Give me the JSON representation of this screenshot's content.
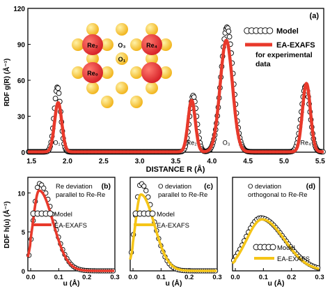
{
  "chart_data": [
    {
      "type": "line",
      "panel_label": "(a)",
      "ylabel": "RDF g(R) (Å⁻¹)",
      "xlabel": "DISTANCE R (Å)",
      "xlim": [
        1.45,
        5.55
      ],
      "ylim": [
        0,
        120
      ],
      "xticks": [
        1.5,
        2.0,
        2.5,
        3.0,
        3.5,
        4.0,
        4.5,
        5.0,
        5.5
      ],
      "xtick_labels": [
        "1.5",
        "2.0",
        "2.5",
        "3.0",
        "3.5",
        "4.0",
        "4.5",
        "5.0",
        "5.5"
      ],
      "yticks": [
        0,
        30,
        60,
        90,
        120
      ],
      "ytick_labels": [
        "0",
        "30",
        "60",
        "90",
        "120"
      ],
      "legend": {
        "position": "top-right",
        "entries": [
          "Model",
          "EA-EXAFS",
          "for experimental",
          "data"
        ]
      },
      "peak_labels": [
        {
          "text": "O₁",
          "x": 1.85,
          "y": 5
        },
        {
          "text": "Re₂",
          "x": 3.72,
          "y": 5
        },
        {
          "text": "O₃",
          "x": 4.2,
          "y": 5
        },
        {
          "text": "Re₄",
          "x": 5.3,
          "y": 5
        }
      ],
      "series": [
        {
          "name": "Model",
          "style": "open-circles",
          "color": "#000000",
          "peaks": [
            {
              "center": 1.86,
              "height": 54,
              "width": 0.045
            },
            {
              "center": 3.74,
              "height": 47,
              "width": 0.05
            },
            {
              "center": 4.21,
              "height": 104,
              "width": 0.085
            },
            {
              "center": 5.3,
              "height": 55,
              "width": 0.06
            }
          ]
        },
        {
          "name": "EA-EXAFS",
          "style": "line",
          "color": "#e8392b",
          "peaks": [
            {
              "center": 1.87,
              "height": 41,
              "width": 0.05
            },
            {
              "center": 3.72,
              "height": 43,
              "width": 0.05
            },
            {
              "center": 4.2,
              "height": 93,
              "width": 0.085
            },
            {
              "center": 5.31,
              "height": 57,
              "width": 0.055
            }
          ]
        }
      ],
      "inset": {
        "atoms": [
          "Re₂",
          "O₃",
          "Re₄",
          "O₁",
          "Re₀"
        ],
        "colors": {
          "re": "#d8242a",
          "o": "#f2b620"
        }
      }
    },
    {
      "type": "line",
      "panel_label": "(b)",
      "annotation": [
        "Re deviation",
        "parallel to Re-Re"
      ],
      "xlabel": "u (Å)",
      "ylabel": "DDF h(u) (Å⁻¹)",
      "xlim": [
        -0.01,
        0.3
      ],
      "ylim": [
        0,
        12
      ],
      "xticks": [
        0.0,
        0.1,
        0.2,
        0.3
      ],
      "xtick_labels": [
        "0.0",
        "0.1",
        "0.2",
        "0.3"
      ],
      "yticks": [
        0,
        5,
        10
      ],
      "ytick_labels": [
        "0",
        "5",
        "10"
      ],
      "legend_entries": [
        "Model",
        "EA-EXAFS"
      ],
      "series": [
        {
          "name": "Model",
          "style": "open-circles",
          "color": "#000000",
          "peak_x": 0.03,
          "peak_y": 11.2,
          "rise": 0.02,
          "decay": 0.05
        },
        {
          "name": "EA-EXAFS",
          "style": "line",
          "color": "#e8392b",
          "peak_x": 0.03,
          "peak_y": 10.3,
          "rise": 0.022,
          "decay": 0.05
        }
      ]
    },
    {
      "type": "line",
      "panel_label": "(c)",
      "annotation": [
        "O deviation",
        "parallel to Re-Re"
      ],
      "xlabel": "u (Å)",
      "xlim": [
        -0.01,
        0.3
      ],
      "ylim": [
        0,
        12
      ],
      "xticks": [
        0.0,
        0.1,
        0.2,
        0.3
      ],
      "xtick_labels": [
        "0.0",
        "0.1",
        "0.2",
        "0.3"
      ],
      "legend_entries": [
        "Model",
        "EA-EXAFS"
      ],
      "series": [
        {
          "name": "Model",
          "style": "open-circles",
          "color": "#000000",
          "peak_x": 0.028,
          "peak_y": 11.2,
          "rise": 0.02,
          "decay": 0.045
        },
        {
          "name": "EA-EXAFS",
          "style": "line",
          "color": "#f5c518",
          "peak_x": 0.028,
          "peak_y": 9.8,
          "rise": 0.02,
          "decay": 0.048
        }
      ]
    },
    {
      "type": "line",
      "panel_label": "(d)",
      "annotation": [
        "O deviation",
        "orthogonal to Re-Re"
      ],
      "xlabel": "u (Å)",
      "xlim": [
        -0.01,
        0.3
      ],
      "ylim": [
        0,
        12
      ],
      "xticks": [
        0.0,
        0.1,
        0.2,
        0.3
      ],
      "xtick_labels": [
        "0.0",
        "0.1",
        "0.2",
        "0.3"
      ],
      "legend_entries": [
        "Model",
        "EA-EXAFS"
      ],
      "series": [
        {
          "name": "Model",
          "style": "open-circles",
          "color": "#000000",
          "peak_x": 0.09,
          "peak_y": 6.8,
          "rise": 0.055,
          "decay": 0.085
        },
        {
          "name": "EA-EXAFS",
          "style": "line",
          "color": "#f5c518",
          "peak_x": 0.095,
          "peak_y": 6.6,
          "rise": 0.055,
          "decay": 0.08
        }
      ]
    }
  ]
}
